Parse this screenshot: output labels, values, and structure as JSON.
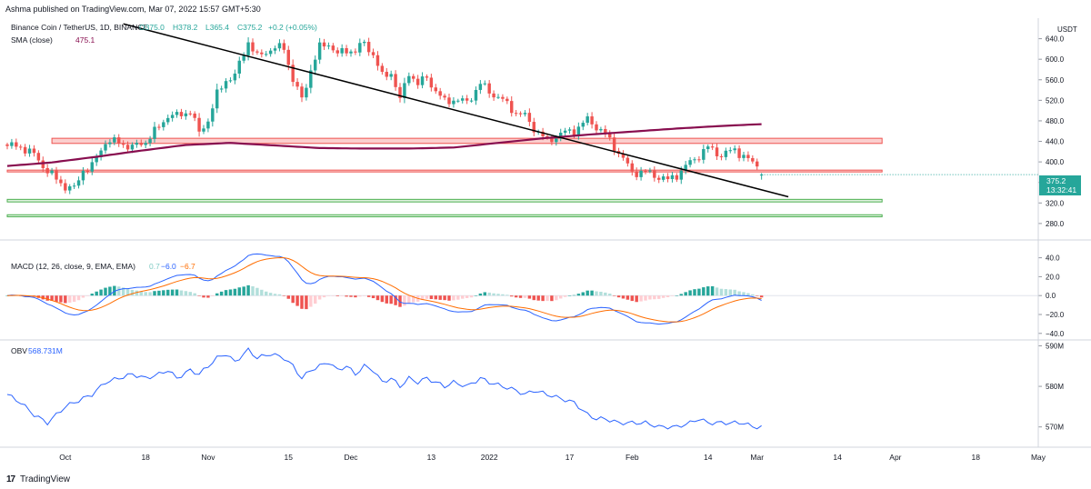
{
  "header": {
    "published": "Ashma published on TradingView.com, Mar 07, 2022 15:57 GMT+5:30"
  },
  "footer": {
    "brand": "TradingView",
    "logo_text": "17"
  },
  "colors": {
    "up": "#26a69a",
    "down": "#ef5350",
    "sma": "#880e4f",
    "trend": "#000000",
    "resistance": "#ef5350",
    "support": "#4caf50",
    "macd": "#2962ff",
    "signal": "#ff6d00",
    "obv": "#2962ff"
  },
  "chart_data": [
    {
      "type": "candlestick",
      "title": "Binance Coin / TetherUS, 1D, BINANCE",
      "ohlc_label": {
        "o": "O375.0",
        "h": "H378.2",
        "l": "L365.4",
        "c": "C375.2",
        "chg": "+0.2 (+0.05%)"
      },
      "price_unit": "USDT",
      "current_price": "375.2",
      "countdown": "13:32:41",
      "ylim": [
        255,
        680
      ],
      "yticks": [
        "640.0",
        "600.0",
        "560.0",
        "520.0",
        "480.0",
        "440.0",
        "400.0",
        "360.0",
        "320.0",
        "280.0"
      ],
      "ytick_values": [
        640,
        600,
        560,
        520,
        480,
        440,
        400,
        360,
        320,
        280
      ],
      "xticks": [
        "Oct",
        "18",
        "Nov",
        "15",
        "Dec",
        "13",
        "2022",
        "17",
        "Feb",
        "14",
        "Mar",
        "14",
        "Apr",
        "18",
        "May"
      ],
      "xtick_days": [
        13,
        31,
        45,
        63,
        77,
        95,
        108,
        126,
        140,
        157,
        168,
        186,
        199,
        217,
        231
      ],
      "start_date": "2021-09-18",
      "days": 170,
      "anchors": [
        [
          0,
          431
        ],
        [
          3,
          430
        ],
        [
          6,
          414
        ],
        [
          9,
          382
        ],
        [
          11,
          366
        ],
        [
          13,
          352
        ],
        [
          15,
          347
        ],
        [
          17,
          385
        ],
        [
          19,
          391
        ],
        [
          22,
          440
        ],
        [
          25,
          438
        ],
        [
          28,
          428
        ],
        [
          31,
          440
        ],
        [
          34,
          468
        ],
        [
          36,
          491
        ],
        [
          38,
          489
        ],
        [
          41,
          500
        ],
        [
          43,
          456
        ],
        [
          45,
          482
        ],
        [
          47,
          531
        ],
        [
          49,
          560
        ],
        [
          51,
          568
        ],
        [
          54,
          635
        ],
        [
          56,
          604
        ],
        [
          59,
          620
        ],
        [
          62,
          623
        ],
        [
          64,
          560
        ],
        [
          66,
          521
        ],
        [
          68,
          580
        ],
        [
          70,
          623
        ],
        [
          72,
          631
        ],
        [
          74,
          609
        ],
        [
          76,
          618
        ],
        [
          78,
          616
        ],
        [
          80,
          632
        ],
        [
          82,
          609
        ],
        [
          84,
          566
        ],
        [
          86,
          575
        ],
        [
          88,
          520
        ],
        [
          90,
          575
        ],
        [
          92,
          551
        ],
        [
          94,
          565
        ],
        [
          96,
          538
        ],
        [
          98,
          517
        ],
        [
          100,
          522
        ],
        [
          103,
          516
        ],
        [
          106,
          552
        ],
        [
          108,
          537
        ],
        [
          111,
          520
        ],
        [
          114,
          496
        ],
        [
          116,
          489
        ],
        [
          118,
          466
        ],
        [
          121,
          440
        ],
        [
          124,
          455
        ],
        [
          127,
          461
        ],
        [
          130,
          482
        ],
        [
          132,
          469
        ],
        [
          134,
          453
        ],
        [
          137,
          418
        ],
        [
          140,
          380
        ],
        [
          143,
          380
        ],
        [
          146,
          371
        ],
        [
          148,
          364
        ],
        [
          150,
          375
        ],
        [
          153,
          399
        ],
        [
          155,
          413
        ],
        [
          157,
          428
        ],
        [
          160,
          413
        ],
        [
          163,
          424
        ],
        [
          165,
          411
        ],
        [
          167,
          397
        ],
        [
          169,
          392
        ],
        [
          171,
          376
        ],
        [
          173,
          357
        ],
        [
          175,
          372
        ],
        [
          177,
          403
        ],
        [
          180,
          397
        ],
        [
          182,
          384
        ],
        [
          185,
          360
        ],
        [
          187,
          374
        ],
        [
          189,
          386
        ],
        [
          192,
          374
        ],
        [
          194,
          383
        ],
        [
          196,
          375
        ]
      ],
      "candles": {
        "last_o": 375.0,
        "last_h": 378.2,
        "last_l": 365.4,
        "last_c": 375.2
      },
      "sma": {
        "label": "SMA (close)",
        "value": "475.1",
        "points": [
          [
            0,
            392
          ],
          [
            10,
            399
          ],
          [
            20,
            410
          ],
          [
            30,
            422
          ],
          [
            40,
            433
          ],
          [
            50,
            437
          ],
          [
            60,
            432
          ],
          [
            70,
            427
          ],
          [
            80,
            426
          ],
          [
            90,
            426
          ],
          [
            100,
            428
          ],
          [
            110,
            437
          ],
          [
            120,
            446
          ],
          [
            130,
            453
          ],
          [
            140,
            459
          ],
          [
            150,
            465
          ],
          [
            160,
            470
          ],
          [
            170,
            474
          ],
          [
            180,
            476
          ],
          [
            190,
            476
          ],
          [
            196,
            475
          ]
        ]
      },
      "trendline": {
        "from": [
          26,
          669
        ],
        "to": [
          175,
          332
        ]
      },
      "zones": [
        {
          "kind": "resistance",
          "from": 10,
          "to": 196,
          "low": 436,
          "high": 446
        },
        {
          "kind": "resistance-line",
          "from": 0,
          "to": 196,
          "low": 381,
          "high": 384
        },
        {
          "kind": "support",
          "from": 0,
          "to": 196,
          "low": 322,
          "high": 327
        },
        {
          "kind": "support",
          "from": 0,
          "to": 196,
          "low": 293,
          "high": 297
        }
      ]
    },
    {
      "type": "line+histogram",
      "title": "MACD (12, 26, close, 9, EMA, EMA)",
      "values_label": {
        "hist": "0.7",
        "macd": "−6.0",
        "signal": "−6.7"
      },
      "ylim": [
        -45,
        55
      ],
      "yticks": [
        "40.0",
        "20.0",
        "0.0",
        "−20.0",
        "−40.0"
      ],
      "ytick_values": [
        40,
        20,
        0,
        -20,
        -40
      ]
    },
    {
      "type": "line",
      "title": "OBV",
      "value": "568.731M",
      "ylim": [
        565,
        591
      ],
      "yticks": [
        "590M",
        "580M",
        "570M"
      ],
      "ytick_values": [
        590,
        580,
        570
      ],
      "points": [
        [
          0,
          578
        ],
        [
          3,
          576
        ],
        [
          6,
          573
        ],
        [
          9,
          571
        ],
        [
          11,
          573
        ],
        [
          13,
          575
        ],
        [
          15,
          576
        ],
        [
          17,
          577
        ],
        [
          19,
          578
        ],
        [
          22,
          581
        ],
        [
          25,
          582
        ],
        [
          28,
          583
        ],
        [
          31,
          582
        ],
        [
          34,
          583
        ],
        [
          36,
          584
        ],
        [
          38,
          582
        ],
        [
          41,
          584
        ],
        [
          43,
          583
        ],
        [
          45,
          585
        ],
        [
          47,
          587
        ],
        [
          49,
          588
        ],
        [
          51,
          586
        ],
        [
          54,
          589
        ],
        [
          56,
          587
        ],
        [
          59,
          588
        ],
        [
          62,
          587
        ],
        [
          64,
          585
        ],
        [
          66,
          582
        ],
        [
          68,
          584
        ],
        [
          70,
          585
        ],
        [
          72,
          586
        ],
        [
          74,
          584
        ],
        [
          76,
          585
        ],
        [
          78,
          583
        ],
        [
          80,
          585
        ],
        [
          82,
          584
        ],
        [
          84,
          581
        ],
        [
          86,
          582
        ],
        [
          88,
          580
        ],
        [
          90,
          582
        ],
        [
          92,
          581
        ],
        [
          94,
          582
        ],
        [
          96,
          581
        ],
        [
          98,
          580
        ],
        [
          100,
          581
        ],
        [
          103,
          580
        ],
        [
          106,
          582
        ],
        [
          108,
          581
        ],
        [
          111,
          580
        ],
        [
          114,
          579
        ],
        [
          116,
          578
        ],
        [
          118,
          579
        ],
        [
          121,
          578
        ],
        [
          124,
          577
        ],
        [
          127,
          576
        ],
        [
          130,
          573
        ],
        [
          132,
          572
        ],
        [
          134,
          572
        ],
        [
          137,
          571
        ],
        [
          140,
          571
        ],
        [
          143,
          571
        ],
        [
          146,
          570
        ],
        [
          148,
          570
        ],
        [
          150,
          570
        ],
        [
          153,
          571
        ],
        [
          155,
          572
        ],
        [
          157,
          571
        ],
        [
          160,
          571
        ],
        [
          163,
          571
        ],
        [
          165,
          571
        ],
        [
          167,
          570
        ],
        [
          169,
          570
        ],
        [
          171,
          569
        ],
        [
          173,
          568
        ],
        [
          175,
          569
        ],
        [
          177,
          570
        ],
        [
          180,
          569
        ],
        [
          182,
          569
        ],
        [
          185,
          568
        ],
        [
          187,
          569
        ],
        [
          189,
          570
        ],
        [
          192,
          569
        ],
        [
          194,
          569
        ],
        [
          196,
          569
        ]
      ]
    }
  ]
}
